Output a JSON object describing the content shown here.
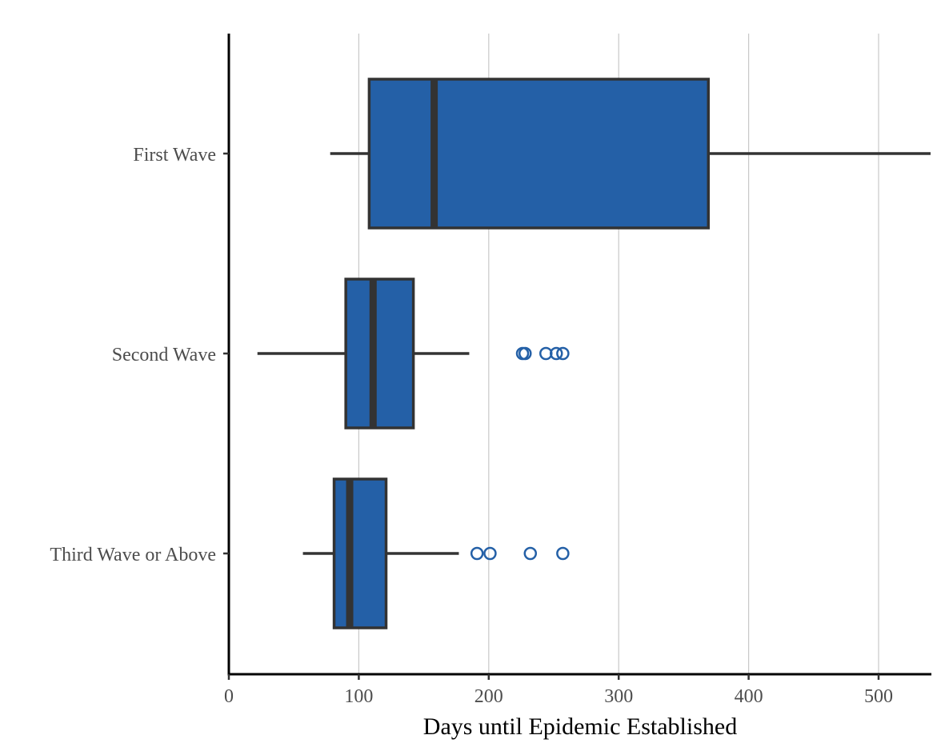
{
  "chart_data": {
    "type": "boxplot",
    "orientation": "horizontal",
    "title": "",
    "xlabel": "Days until Epidemic Established",
    "ylabel": "",
    "xlim": [
      0,
      540
    ],
    "x_ticks": [
      0,
      100,
      200,
      300,
      400,
      500
    ],
    "grid": "vertical major gridlines",
    "legend": "none",
    "fill_color": "#2460a7",
    "line_color": "#333333",
    "outlier_color": "#2460a7",
    "categories": [
      "First Wave",
      "Second Wave",
      "Third Wave or Above"
    ],
    "boxes": [
      {
        "category": "First Wave",
        "whisker_low": 78,
        "q1": 108,
        "median": 158,
        "q3": 369,
        "whisker_high": 540,
        "outliers": []
      },
      {
        "category": "Second Wave",
        "whisker_low": 22,
        "q1": 90,
        "median": 111,
        "q3": 142,
        "whisker_high": 185,
        "outliers": [
          226,
          228,
          244,
          252,
          257
        ]
      },
      {
        "category": "Third Wave or Above",
        "whisker_low": 57,
        "q1": 81,
        "median": 93,
        "q3": 121,
        "whisker_high": 177,
        "outliers": [
          191,
          201,
          232,
          257
        ]
      }
    ]
  }
}
